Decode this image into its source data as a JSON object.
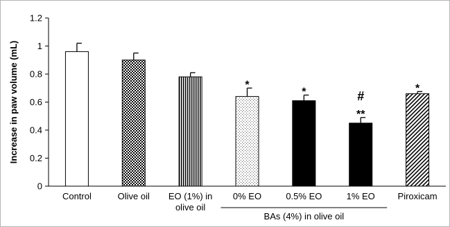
{
  "chart_data": {
    "type": "bar",
    "ylabel": "Increase in paw volume (mL)",
    "ylim": [
      0,
      1.2
    ],
    "yticks": [
      "0",
      "0.2",
      "0.4",
      "0.6",
      "0.8",
      "1",
      "1.2"
    ],
    "categories": [
      [
        "Control"
      ],
      [
        "Olive oil"
      ],
      [
        "EO (1%) in",
        "olive oil"
      ],
      [
        "0% EO"
      ],
      [
        "0.5% EO"
      ],
      [
        "1% EO"
      ],
      [
        "Piroxicam"
      ]
    ],
    "values": [
      0.96,
      0.9,
      0.78,
      0.64,
      0.61,
      0.45,
      0.66
    ],
    "errors": [
      0.06,
      0.05,
      0.03,
      0.06,
      0.04,
      0.04,
      0.015
    ],
    "patterns": [
      "white",
      "checker",
      "vertical",
      "dots",
      "black",
      "black",
      "diagonal"
    ],
    "annotations": [
      [],
      [],
      [],
      [
        "*"
      ],
      [
        "*"
      ],
      [
        "#",
        "**"
      ],
      [
        "*"
      ]
    ],
    "group_label": "BAs (4%) in olive oil",
    "group_range": [
      3,
      5
    ],
    "grid": false
  }
}
